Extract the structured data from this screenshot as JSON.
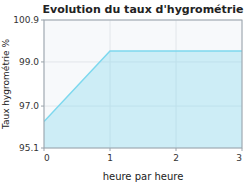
{
  "chart_data": {
    "type": "area",
    "title": "Evolution du taux d'hygrométrie",
    "x_label": "heure par heure",
    "y_label": "Taux hygrométrie %",
    "x": [
      0,
      1,
      3
    ],
    "values": [
      96.3,
      99.5,
      99.5
    ],
    "color": "#7dd8ee",
    "xlim": [
      0,
      3
    ],
    "ylim": [
      95.1,
      100.9
    ],
    "xticks": [
      0,
      1,
      2,
      3
    ],
    "yticks": [
      95.1,
      {
        "value": 97.0,
        "label": "97.0"
      },
      {
        "value": 99.0,
        "label": "99.0"
      },
      100.9
    ],
    "grid": true
  }
}
